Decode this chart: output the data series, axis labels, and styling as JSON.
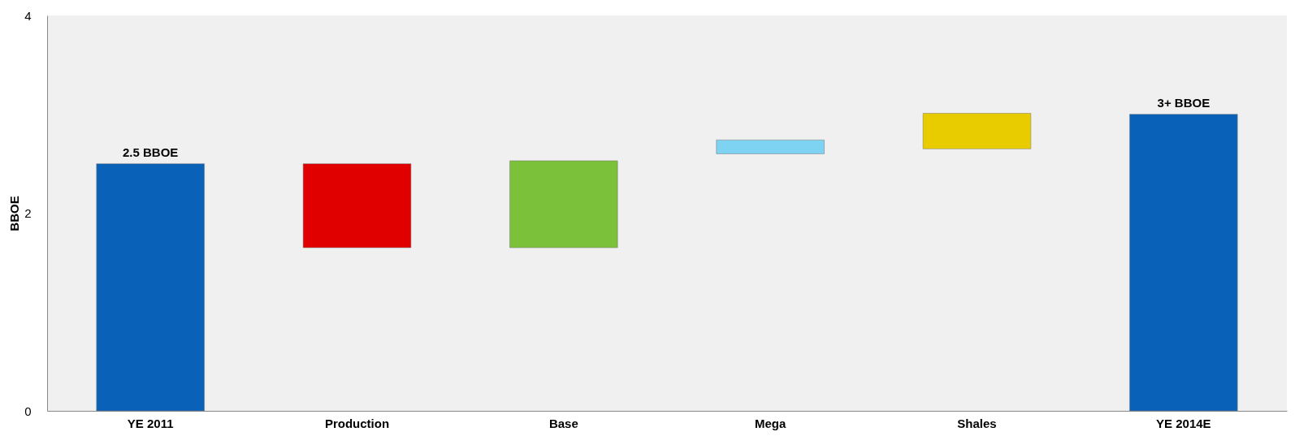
{
  "chart_data": {
    "type": "bar",
    "ylabel": "BBOE",
    "categories": [
      "YE 2011",
      "Production",
      "Base",
      "Mega",
      "Shales",
      "YE 2014E"
    ],
    "values": [
      2.5,
      -0.85,
      0.88,
      0.14,
      0.36,
      3.0
    ],
    "base": [
      0,
      2.5,
      1.65,
      2.6,
      2.65,
      0
    ],
    "colors": [
      "#0a62b8",
      "#e00000",
      "#7cc13a",
      "#7fd3f2",
      "#e8cc00",
      "#0a62b8"
    ],
    "value_labels": [
      "2.5 BBOE",
      null,
      null,
      null,
      null,
      "3+ BBOE"
    ],
    "ylim": [
      0,
      4
    ],
    "yticks": [
      0,
      2,
      4
    ],
    "grid": false
  }
}
